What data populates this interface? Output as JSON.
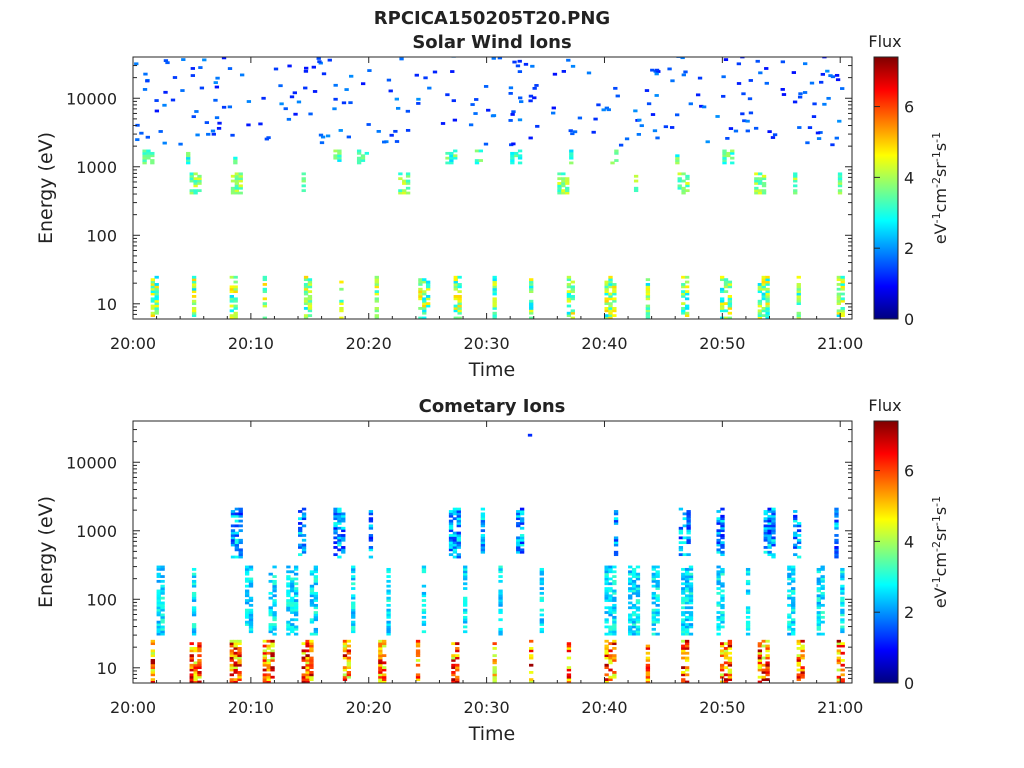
{
  "figure": {
    "title": "RPCICA150205T20.PNG",
    "colormap": [
      "#00007f",
      "#0000ff",
      "#007fff",
      "#00ffff",
      "#7fff7f",
      "#ffff00",
      "#ff7f00",
      "#ff0000",
      "#7f0000"
    ]
  },
  "chart_data": [
    {
      "type": "heatmap",
      "title": "Solar Wind Ions",
      "xlabel": "Time",
      "ylabel": "Energy (eV)",
      "x_ticks": [
        "20:00",
        "20:10",
        "20:20",
        "20:30",
        "20:40",
        "20:50",
        "21:00"
      ],
      "y_ticks": [
        "10",
        "100",
        "1000",
        "10000"
      ],
      "y_scale": "log",
      "xlim": [
        "20:00",
        "21:01"
      ],
      "ylim": [
        6,
        40000
      ],
      "grid": false,
      "colorbar": {
        "label": "Flux",
        "units": "eV-1cm-2sr-1s-1",
        "ticks": [
          "0",
          "2",
          "4",
          "6"
        ],
        "range": [
          0,
          7.4
        ]
      },
      "dominant_bands": [
        {
          "energy_range_eV": [
            6,
            25
          ],
          "times_min": [
            1.5,
            5,
            8.2,
            11,
            14.5,
            17.5,
            20.5,
            24.2,
            27.2,
            30.5,
            33.6,
            36.8,
            40,
            43.5,
            46.5,
            49.8,
            53,
            56.3,
            59.7
          ],
          "flux_range": [
            2.5,
            5
          ]
        },
        {
          "energy_range_eV": [
            400,
            800
          ],
          "times_min": [
            4.8,
            8.3,
            14.3,
            22.5,
            36,
            42.5,
            46.2,
            52.7,
            56,
            59.8
          ],
          "flux_range": [
            3,
            4.5
          ]
        },
        {
          "energy_range_eV": [
            1100,
            1700
          ],
          "times_min": [
            0.8,
            4.5,
            8.5,
            17,
            19,
            26.5,
            29,
            32,
            37,
            40.5,
            46,
            50
          ],
          "flux_range": [
            2.5,
            4
          ]
        },
        {
          "energy_range_eV": [
            2000,
            40000
          ],
          "description_flux_range": [
            1,
            2
          ]
        }
      ]
    },
    {
      "type": "heatmap",
      "title": "Cometary Ions",
      "xlabel": "Time",
      "ylabel": "Energy (eV)",
      "x_ticks": [
        "20:00",
        "20:10",
        "20:20",
        "20:30",
        "20:40",
        "20:50",
        "21:00"
      ],
      "y_ticks": [
        "10",
        "100",
        "1000",
        "10000"
      ],
      "y_scale": "log",
      "xlim": [
        "20:00",
        "21:01"
      ],
      "ylim": [
        6,
        40000
      ],
      "grid": false,
      "colorbar": {
        "label": "Flux",
        "units": "eV-1cm-2sr-1s-1",
        "ticks": [
          "0",
          "2",
          "4",
          "6"
        ],
        "range": [
          0,
          7.4
        ]
      },
      "dominant_bands": [
        {
          "energy_range_eV": [
            6,
            25
          ],
          "times_min": [
            1.5,
            4.8,
            8.2,
            11,
            14.3,
            17.8,
            20.8,
            24,
            27,
            30.5,
            33.6,
            36.8,
            40,
            43.5,
            46.5,
            49.8,
            53,
            56.3,
            59.7
          ],
          "flux_range": [
            4,
            7.2
          ]
        },
        {
          "energy_range_eV": [
            30,
            300
          ],
          "times_min": [
            2,
            5,
            9.5,
            11.5,
            13,
            15,
            18.5,
            21.5,
            24.5,
            28,
            31,
            34.5,
            40,
            42,
            44,
            46.5,
            49.5,
            52,
            55.5,
            58,
            60
          ],
          "flux_range": [
            2,
            3.2
          ]
        },
        {
          "energy_range_eV": [
            400,
            2100
          ],
          "times_min": [
            8.3,
            14,
            17,
            20,
            26.8,
            29.5,
            32.5,
            40.8,
            46.3,
            49.5,
            53.5,
            56,
            59.5
          ],
          "flux_range": [
            1,
            3
          ]
        },
        {
          "energy_range_eV": [
            24000,
            25000
          ],
          "times_min": [
            33.5
          ],
          "flux_range": [
            1,
            1.5
          ]
        }
      ]
    }
  ]
}
